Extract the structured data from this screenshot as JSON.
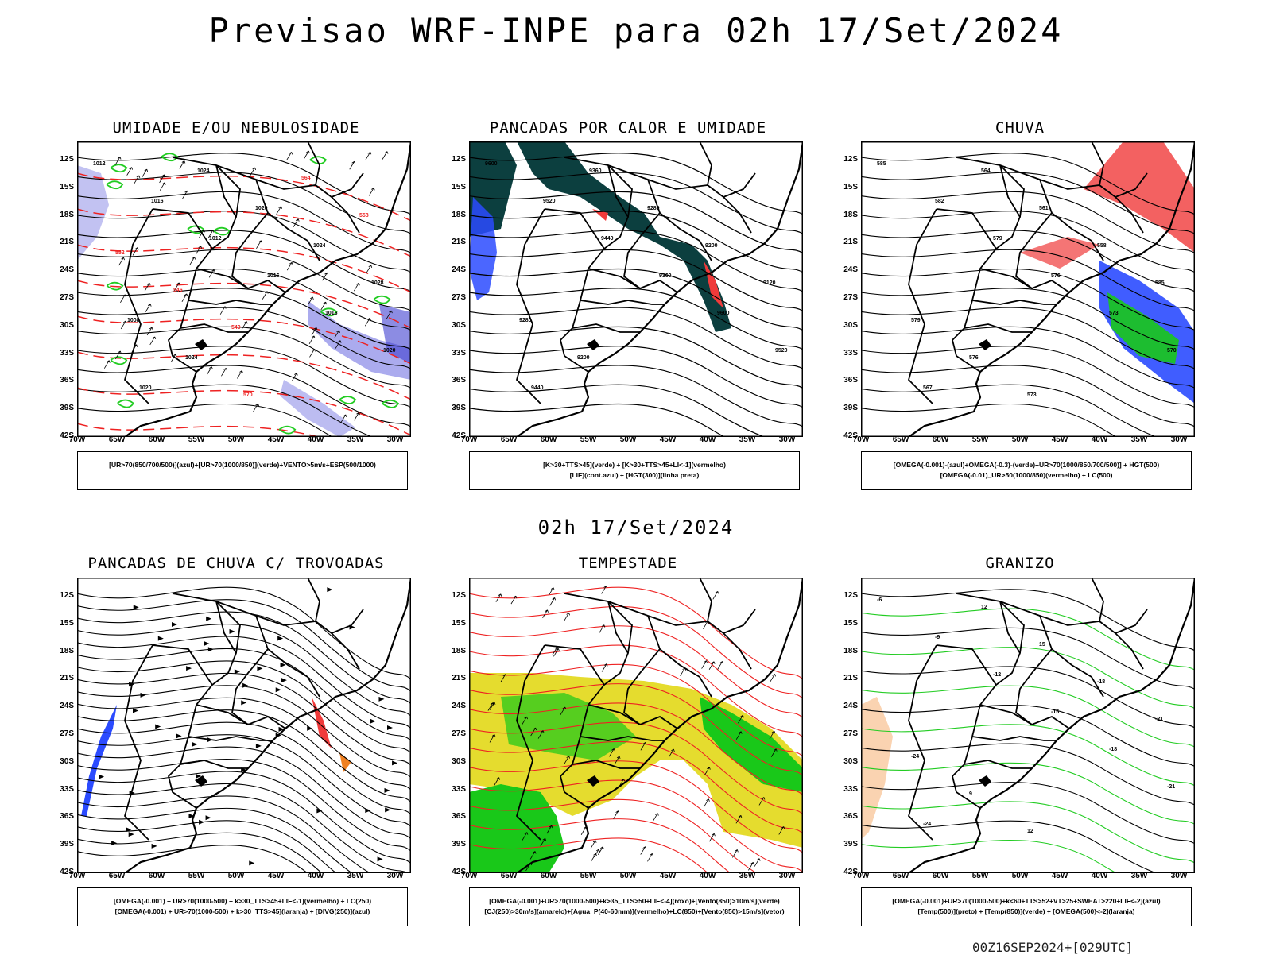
{
  "header": {
    "title": "Previsao WRF-INPE  para 02h 17/Set/2024"
  },
  "mid_title": "02h 17/Set/2024",
  "footer_stamp": "00Z16SEP2024+[029UTC]",
  "axes": {
    "lat_labels": [
      "12S",
      "15S",
      "18S",
      "21S",
      "24S",
      "27S",
      "30S",
      "33S",
      "36S",
      "39S",
      "42S"
    ],
    "lon_labels": [
      "70W",
      "65W",
      "60W",
      "55W",
      "50W",
      "45W",
      "40W",
      "35W",
      "30W"
    ]
  },
  "panels": [
    {
      "title": "UMIDADE E/OU NEBULOSIDADE",
      "caption_lines": [
        "[UR>70(850/700/500)](azul)+[UR>70(1000/850)](verde)+VENTO>5m/s+ESP(500/1000)"
      ],
      "contour_labels": [
        "1012",
        "1016",
        "1012",
        "1016",
        "1016",
        "1020",
        "1020",
        "1024",
        "1020",
        "1024",
        "1028",
        "1008",
        "1024",
        "570",
        "564",
        "558",
        "552",
        "546",
        "540"
      ]
    },
    {
      "title": "PANCADAS POR CALOR E UMIDADE",
      "caption_lines": [
        "[K>30+TTS>45](verde) + [K>30+TTS>45+LI<-1](vermelho)",
        "[LIF](cont.azul) + [HGT(300)](linha preta)"
      ],
      "contour_labels": [
        "9600",
        "9520",
        "9440",
        "9360",
        "9600",
        "9520",
        "9440",
        "9360",
        "9280",
        "9200",
        "9120",
        "9280",
        "9200"
      ]
    },
    {
      "title": "CHUVA",
      "caption_lines": [
        "[OMEGA(-0.001)-(azul)+OMEGA(-0.3)-(verde)+UR>70(1000/850/700/500)] + HGT(500)",
        "[OMEGA(-0.01)_UR>50(1000/850)(vermelho) + LC(500)"
      ],
      "contour_labels": [
        "585",
        "582",
        "579",
        "576",
        "573",
        "570",
        "567",
        "564",
        "561",
        "558",
        "585",
        "579",
        "576",
        "573"
      ]
    },
    {
      "title": "PANCADAS DE CHUVA C/ TROVOADAS",
      "caption_lines": [
        "[OMEGA(-0.001) + UR>70(1000-500) + k>30_TTS>45+LIF<-1](vermelho) + LC(250)",
        "[OMEGA(-0.001) + UR>70(1000-500) + k>30_TTS>45](laranja) + [DIVG(250)](azul)"
      ],
      "contour_labels": []
    },
    {
      "title": "TEMPESTADE",
      "caption_lines": [
        "[OMEGA(-0.001)+UR>70(1000-500)+k>35_TTS>50+LIF<-4](roxo)+[Vento(850)>10m/s](verde)",
        "[CJ(250)>30m/s](amarelo)+[Agua_P(40-60mm)](vermelho)+LC(850)+[Vento(850)>15m/s](vetor)"
      ],
      "contour_labels": []
    },
    {
      "title": "GRANIZO",
      "caption_lines": [
        "[OMEGA(-0.001)+UR>70(1000-500)+k<60+TTS>52+VT>25+SWEAT>220+LIF<-2](azul)",
        "[Temp(500)](preto) + [Temp(850)](verde) + [OMEGA(500)<-2](laranja)"
      ],
      "contour_labels": [
        "-6",
        "-9",
        "-12",
        "-15",
        "-18",
        "-21",
        "-24",
        "12",
        "15",
        "-18",
        "-21",
        "-24",
        "9",
        "12"
      ]
    }
  ],
  "colors": {
    "rh_blue": "#8f8fe8",
    "rh_green": "#22cc22",
    "dashed_red": "#ee2222",
    "dark_teal": "#0c3f3f",
    "red": "#f03a3a",
    "blue": "#2b4bff",
    "green": "#19c819",
    "orange": "#f08020",
    "yellow": "#e5dc2e"
  }
}
